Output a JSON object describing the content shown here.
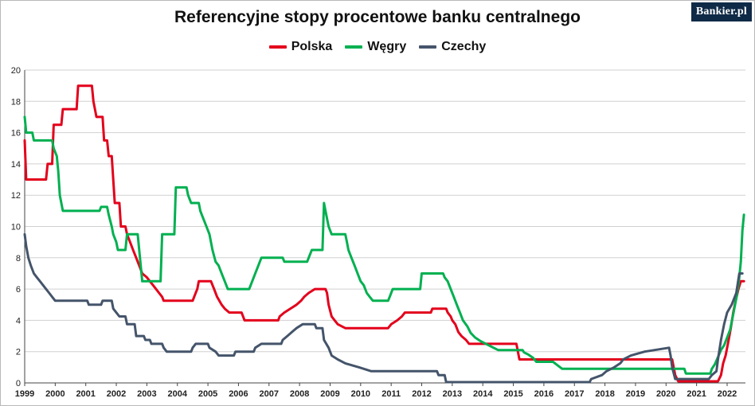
{
  "title": "Referencyjne stopy procentowe banku centralnego",
  "logo": "Bankier.pl",
  "colors": {
    "polska": "#e3001b",
    "wegry": "#00b050",
    "czechy": "#44546a",
    "grid": "#d0d0d0",
    "axis": "#444444"
  },
  "chart_data": {
    "type": "line",
    "title": "Referencyjne stopy procentowe banku centralnego",
    "xlabel": "",
    "ylabel": "",
    "xlim": [
      1999,
      2022.6
    ],
    "ylim": [
      0,
      20
    ],
    "x_ticks": [
      "1999",
      "2000",
      "2001",
      "2002",
      "2003",
      "2004",
      "2005",
      "2006",
      "2007",
      "2008",
      "2009",
      "2010",
      "2011",
      "2012",
      "2013",
      "2014",
      "2015",
      "2016",
      "2017",
      "2018",
      "2019",
      "2020",
      "2021",
      "2022"
    ],
    "y_ticks": [
      "0",
      "2",
      "4",
      "6",
      "8",
      "10",
      "12",
      "14",
      "16",
      "18",
      "20"
    ],
    "grid": "horizontal",
    "legend": "top-center",
    "series": [
      {
        "name": "Polska",
        "color": "#e3001b",
        "points": [
          [
            1999.0,
            15.5
          ],
          [
            1999.05,
            13.0
          ],
          [
            1999.7,
            13.0
          ],
          [
            1999.75,
            14.0
          ],
          [
            1999.9,
            14.0
          ],
          [
            1999.95,
            16.5
          ],
          [
            2000.2,
            16.5
          ],
          [
            2000.25,
            17.5
          ],
          [
            2000.7,
            17.5
          ],
          [
            2000.75,
            19.0
          ],
          [
            2001.2,
            19.0
          ],
          [
            2001.25,
            18.0
          ],
          [
            2001.35,
            17.0
          ],
          [
            2001.55,
            17.0
          ],
          [
            2001.6,
            15.5
          ],
          [
            2001.7,
            15.5
          ],
          [
            2001.75,
            14.5
          ],
          [
            2001.85,
            14.5
          ],
          [
            2001.9,
            13.0
          ],
          [
            2001.95,
            11.5
          ],
          [
            2002.1,
            11.5
          ],
          [
            2002.15,
            10.0
          ],
          [
            2002.3,
            10.0
          ],
          [
            2002.35,
            9.5
          ],
          [
            2002.45,
            9.0
          ],
          [
            2002.55,
            8.5
          ],
          [
            2002.65,
            8.0
          ],
          [
            2002.75,
            7.5
          ],
          [
            2002.85,
            7.0
          ],
          [
            2003.0,
            6.75
          ],
          [
            2003.1,
            6.5
          ],
          [
            2003.2,
            6.25
          ],
          [
            2003.3,
            6.0
          ],
          [
            2003.4,
            5.75
          ],
          [
            2003.5,
            5.5
          ],
          [
            2003.55,
            5.25
          ],
          [
            2004.5,
            5.25
          ],
          [
            2004.6,
            5.75
          ],
          [
            2004.65,
            6.0
          ],
          [
            2004.7,
            6.5
          ],
          [
            2005.1,
            6.5
          ],
          [
            2005.2,
            6.0
          ],
          [
            2005.3,
            5.5
          ],
          [
            2005.45,
            5.0
          ],
          [
            2005.55,
            4.75
          ],
          [
            2005.7,
            4.5
          ],
          [
            2006.1,
            4.5
          ],
          [
            2006.2,
            4.0
          ],
          [
            2007.3,
            4.0
          ],
          [
            2007.35,
            4.25
          ],
          [
            2007.5,
            4.5
          ],
          [
            2007.7,
            4.75
          ],
          [
            2007.9,
            5.0
          ],
          [
            2008.05,
            5.25
          ],
          [
            2008.15,
            5.5
          ],
          [
            2008.3,
            5.75
          ],
          [
            2008.5,
            6.0
          ],
          [
            2008.85,
            6.0
          ],
          [
            2008.9,
            5.75
          ],
          [
            2008.95,
            5.0
          ],
          [
            2009.05,
            4.25
          ],
          [
            2009.15,
            4.0
          ],
          [
            2009.25,
            3.75
          ],
          [
            2009.5,
            3.5
          ],
          [
            2010.9,
            3.5
          ],
          [
            2011.0,
            3.75
          ],
          [
            2011.2,
            4.0
          ],
          [
            2011.35,
            4.25
          ],
          [
            2011.45,
            4.5
          ],
          [
            2012.3,
            4.5
          ],
          [
            2012.35,
            4.75
          ],
          [
            2012.8,
            4.75
          ],
          [
            2012.85,
            4.5
          ],
          [
            2012.95,
            4.25
          ],
          [
            2013.0,
            4.0
          ],
          [
            2013.1,
            3.75
          ],
          [
            2013.2,
            3.25
          ],
          [
            2013.3,
            3.0
          ],
          [
            2013.45,
            2.75
          ],
          [
            2013.55,
            2.5
          ],
          [
            2015.1,
            2.5
          ],
          [
            2015.15,
            2.0
          ],
          [
            2015.2,
            1.5
          ],
          [
            2020.2,
            1.5
          ],
          [
            2020.25,
            1.0
          ],
          [
            2020.3,
            0.5
          ],
          [
            2020.4,
            0.1
          ],
          [
            2021.7,
            0.1
          ],
          [
            2021.8,
            0.5
          ],
          [
            2021.87,
            1.25
          ],
          [
            2021.95,
            1.75
          ],
          [
            2022.0,
            2.25
          ],
          [
            2022.05,
            2.75
          ],
          [
            2022.12,
            3.5
          ],
          [
            2022.2,
            4.5
          ],
          [
            2022.28,
            5.25
          ],
          [
            2022.37,
            6.0
          ],
          [
            2022.45,
            6.5
          ],
          [
            2022.55,
            6.5
          ]
        ]
      },
      {
        "name": "Węgry",
        "color": "#00b050",
        "points": [
          [
            1999.0,
            17.0
          ],
          [
            1999.05,
            16.0
          ],
          [
            1999.25,
            16.0
          ],
          [
            1999.3,
            15.5
          ],
          [
            1999.9,
            15.5
          ],
          [
            1999.95,
            15.0
          ],
          [
            2000.05,
            14.5
          ],
          [
            2000.1,
            13.5
          ],
          [
            2000.15,
            12.0
          ],
          [
            2000.25,
            11.0
          ],
          [
            2001.45,
            11.0
          ],
          [
            2001.5,
            11.25
          ],
          [
            2001.7,
            11.25
          ],
          [
            2001.75,
            10.75
          ],
          [
            2001.85,
            10.0
          ],
          [
            2001.9,
            9.5
          ],
          [
            2002.0,
            9.0
          ],
          [
            2002.05,
            8.5
          ],
          [
            2002.3,
            8.5
          ],
          [
            2002.35,
            9.5
          ],
          [
            2002.7,
            9.5
          ],
          [
            2002.75,
            8.5
          ],
          [
            2002.8,
            7.5
          ],
          [
            2002.85,
            6.5
          ],
          [
            2003.45,
            6.5
          ],
          [
            2003.5,
            9.5
          ],
          [
            2003.9,
            9.5
          ],
          [
            2003.95,
            12.5
          ],
          [
            2004.3,
            12.5
          ],
          [
            2004.35,
            12.0
          ],
          [
            2004.45,
            11.5
          ],
          [
            2004.7,
            11.5
          ],
          [
            2004.75,
            11.0
          ],
          [
            2004.85,
            10.5
          ],
          [
            2004.95,
            10.0
          ],
          [
            2005.05,
            9.5
          ],
          [
            2005.15,
            8.5
          ],
          [
            2005.25,
            7.75
          ],
          [
            2005.35,
            7.5
          ],
          [
            2005.45,
            7.0
          ],
          [
            2005.55,
            6.5
          ],
          [
            2005.65,
            6.0
          ],
          [
            2006.35,
            6.0
          ],
          [
            2006.45,
            6.5
          ],
          [
            2006.55,
            7.0
          ],
          [
            2006.65,
            7.5
          ],
          [
            2006.75,
            8.0
          ],
          [
            2007.45,
            8.0
          ],
          [
            2007.5,
            7.75
          ],
          [
            2008.25,
            7.75
          ],
          [
            2008.3,
            8.0
          ],
          [
            2008.4,
            8.5
          ],
          [
            2008.75,
            8.5
          ],
          [
            2008.8,
            11.5
          ],
          [
            2008.85,
            11.0
          ],
          [
            2008.95,
            10.0
          ],
          [
            2009.05,
            9.5
          ],
          [
            2009.5,
            9.5
          ],
          [
            2009.55,
            9.0
          ],
          [
            2009.6,
            8.5
          ],
          [
            2009.7,
            8.0
          ],
          [
            2009.8,
            7.5
          ],
          [
            2009.9,
            7.0
          ],
          [
            2010.0,
            6.5
          ],
          [
            2010.1,
            6.25
          ],
          [
            2010.2,
            5.75
          ],
          [
            2010.3,
            5.5
          ],
          [
            2010.4,
            5.25
          ],
          [
            2010.9,
            5.25
          ],
          [
            2010.95,
            5.5
          ],
          [
            2011.05,
            6.0
          ],
          [
            2011.95,
            6.0
          ],
          [
            2012.0,
            7.0
          ],
          [
            2012.7,
            7.0
          ],
          [
            2012.75,
            6.75
          ],
          [
            2012.85,
            6.5
          ],
          [
            2012.95,
            6.0
          ],
          [
            2013.05,
            5.5
          ],
          [
            2013.15,
            5.0
          ],
          [
            2013.25,
            4.5
          ],
          [
            2013.35,
            4.0
          ],
          [
            2013.5,
            3.6
          ],
          [
            2013.6,
            3.2
          ],
          [
            2013.75,
            2.9
          ],
          [
            2013.9,
            2.7
          ],
          [
            2014.0,
            2.6
          ],
          [
            2014.3,
            2.3
          ],
          [
            2014.5,
            2.1
          ],
          [
            2015.3,
            2.1
          ],
          [
            2015.35,
            1.95
          ],
          [
            2015.5,
            1.8
          ],
          [
            2015.65,
            1.6
          ],
          [
            2015.75,
            1.35
          ],
          [
            2016.3,
            1.35
          ],
          [
            2016.4,
            1.2
          ],
          [
            2016.5,
            1.05
          ],
          [
            2016.6,
            0.9
          ],
          [
            2020.6,
            0.9
          ],
          [
            2020.65,
            0.6
          ],
          [
            2021.45,
            0.6
          ],
          [
            2021.5,
            0.9
          ],
          [
            2021.6,
            1.2
          ],
          [
            2021.7,
            1.65
          ],
          [
            2021.8,
            2.1
          ],
          [
            2021.9,
            2.4
          ],
          [
            2022.0,
            2.9
          ],
          [
            2022.1,
            3.4
          ],
          [
            2022.2,
            4.4
          ],
          [
            2022.3,
            5.4
          ],
          [
            2022.38,
            6.4
          ],
          [
            2022.45,
            7.75
          ],
          [
            2022.5,
            9.75
          ],
          [
            2022.55,
            10.75
          ]
        ]
      },
      {
        "name": "Czechy",
        "color": "#44546a",
        "points": [
          [
            1999.0,
            9.5
          ],
          [
            1999.05,
            8.75
          ],
          [
            1999.12,
            8.0
          ],
          [
            1999.2,
            7.5
          ],
          [
            1999.3,
            7.0
          ],
          [
            1999.4,
            6.75
          ],
          [
            1999.5,
            6.5
          ],
          [
            1999.6,
            6.25
          ],
          [
            1999.7,
            6.0
          ],
          [
            1999.8,
            5.75
          ],
          [
            1999.9,
            5.5
          ],
          [
            2000.0,
            5.25
          ],
          [
            2001.05,
            5.25
          ],
          [
            2001.1,
            5.0
          ],
          [
            2001.5,
            5.0
          ],
          [
            2001.55,
            5.25
          ],
          [
            2001.85,
            5.25
          ],
          [
            2001.9,
            4.75
          ],
          [
            2002.0,
            4.5
          ],
          [
            2002.1,
            4.25
          ],
          [
            2002.3,
            4.25
          ],
          [
            2002.35,
            3.75
          ],
          [
            2002.6,
            3.75
          ],
          [
            2002.65,
            3.0
          ],
          [
            2002.9,
            3.0
          ],
          [
            2002.95,
            2.75
          ],
          [
            2003.1,
            2.75
          ],
          [
            2003.15,
            2.5
          ],
          [
            2003.5,
            2.5
          ],
          [
            2003.55,
            2.25
          ],
          [
            2003.65,
            2.0
          ],
          [
            2004.45,
            2.0
          ],
          [
            2004.5,
            2.25
          ],
          [
            2004.6,
            2.5
          ],
          [
            2005.0,
            2.5
          ],
          [
            2005.05,
            2.25
          ],
          [
            2005.25,
            2.0
          ],
          [
            2005.35,
            1.75
          ],
          [
            2005.85,
            1.75
          ],
          [
            2005.9,
            2.0
          ],
          [
            2006.5,
            2.0
          ],
          [
            2006.55,
            2.25
          ],
          [
            2006.75,
            2.5
          ],
          [
            2007.4,
            2.5
          ],
          [
            2007.45,
            2.75
          ],
          [
            2007.6,
            3.0
          ],
          [
            2007.75,
            3.25
          ],
          [
            2007.9,
            3.5
          ],
          [
            2008.1,
            3.75
          ],
          [
            2008.5,
            3.75
          ],
          [
            2008.55,
            3.5
          ],
          [
            2008.75,
            3.5
          ],
          [
            2008.8,
            2.75
          ],
          [
            2008.95,
            2.25
          ],
          [
            2009.05,
            1.75
          ],
          [
            2009.25,
            1.5
          ],
          [
            2009.5,
            1.25
          ],
          [
            2009.95,
            1.0
          ],
          [
            2010.35,
            0.75
          ],
          [
            2012.5,
            0.75
          ],
          [
            2012.55,
            0.5
          ],
          [
            2012.75,
            0.5
          ],
          [
            2012.8,
            0.05
          ],
          [
            2017.5,
            0.05
          ],
          [
            2017.55,
            0.25
          ],
          [
            2017.9,
            0.5
          ],
          [
            2018.05,
            0.75
          ],
          [
            2018.3,
            1.0
          ],
          [
            2018.5,
            1.25
          ],
          [
            2018.6,
            1.5
          ],
          [
            2018.85,
            1.75
          ],
          [
            2019.3,
            2.0
          ],
          [
            2020.1,
            2.25
          ],
          [
            2020.15,
            1.75
          ],
          [
            2020.2,
            1.0
          ],
          [
            2020.3,
            0.25
          ],
          [
            2021.4,
            0.25
          ],
          [
            2021.5,
            0.5
          ],
          [
            2021.65,
            0.75
          ],
          [
            2021.7,
            1.5
          ],
          [
            2021.8,
            2.75
          ],
          [
            2021.9,
            3.75
          ],
          [
            2022.0,
            4.5
          ],
          [
            2022.15,
            5.0
          ],
          [
            2022.3,
            5.75
          ],
          [
            2022.4,
            7.0
          ],
          [
            2022.5,
            7.0
          ]
        ]
      }
    ]
  }
}
